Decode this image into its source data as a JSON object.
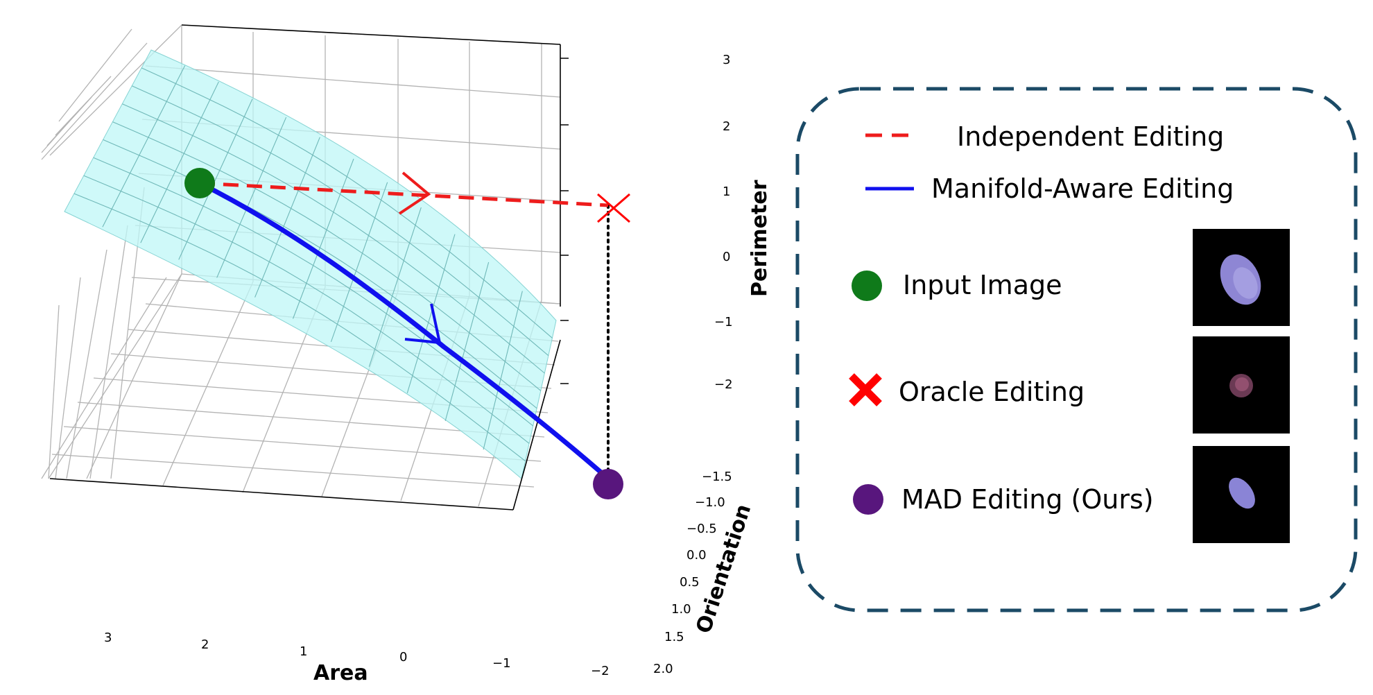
{
  "axes": {
    "area_label": "Area",
    "orientation_label": "Orientation",
    "perimeter_label": "Perimeter",
    "area_ticks": [
      "3",
      "2",
      "1",
      "0",
      "−1",
      "−2"
    ],
    "orientation_ticks": [
      "−1.5",
      "−1.0",
      "−0.5",
      "0.0",
      "0.5",
      "1.0",
      "1.5",
      "2.0"
    ],
    "perimeter_ticks": [
      "3",
      "2",
      "1",
      "0",
      "−1",
      "−2"
    ]
  },
  "legend": {
    "independent": "Independent Editing",
    "manifold": "Manifold-Aware Editing",
    "input": "Input Image",
    "oracle": "Oracle Editing",
    "mad": "MAD Editing (Ours)"
  },
  "colors": {
    "surface": "#bff7f7",
    "surface_grid": "#6fb8b8",
    "independent": "#ee1c1c",
    "manifold": "#1010ee",
    "input": "#0f7a1a",
    "oracle": "#ff0000",
    "mad": "#58167d",
    "frame": "#1b4a66"
  }
}
